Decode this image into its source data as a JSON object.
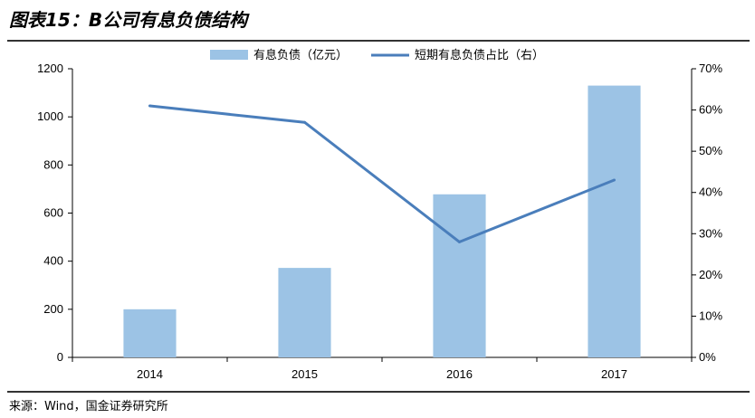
{
  "figure_title": "图表15：B公司有息负债结构",
  "source_note": "来源：Wind，国金证券研究所",
  "chart_data": {
    "type": "bar",
    "categories": [
      "2014",
      "2015",
      "2016",
      "2017"
    ],
    "series": [
      {
        "name": "有息负债（亿元）",
        "type": "bar",
        "axis": "left",
        "color": "#9cc3e5",
        "values": [
          200,
          372,
          678,
          1130
        ]
      },
      {
        "name": "短期有息负债占比（右）",
        "type": "line",
        "axis": "right",
        "color": "#4a7ebb",
        "values": [
          61,
          57,
          28,
          43
        ]
      }
    ],
    "y_left": {
      "min": 0,
      "max": 1200,
      "step": 200,
      "ticks": [
        "0",
        "200",
        "400",
        "600",
        "800",
        "1000",
        "1200"
      ]
    },
    "y_right": {
      "min": 0,
      "max": 70,
      "step": 10,
      "ticks": [
        "0%",
        "10%",
        "20%",
        "30%",
        "40%",
        "50%",
        "60%",
        "70%"
      ]
    },
    "grid": false,
    "legend_position": "top"
  }
}
